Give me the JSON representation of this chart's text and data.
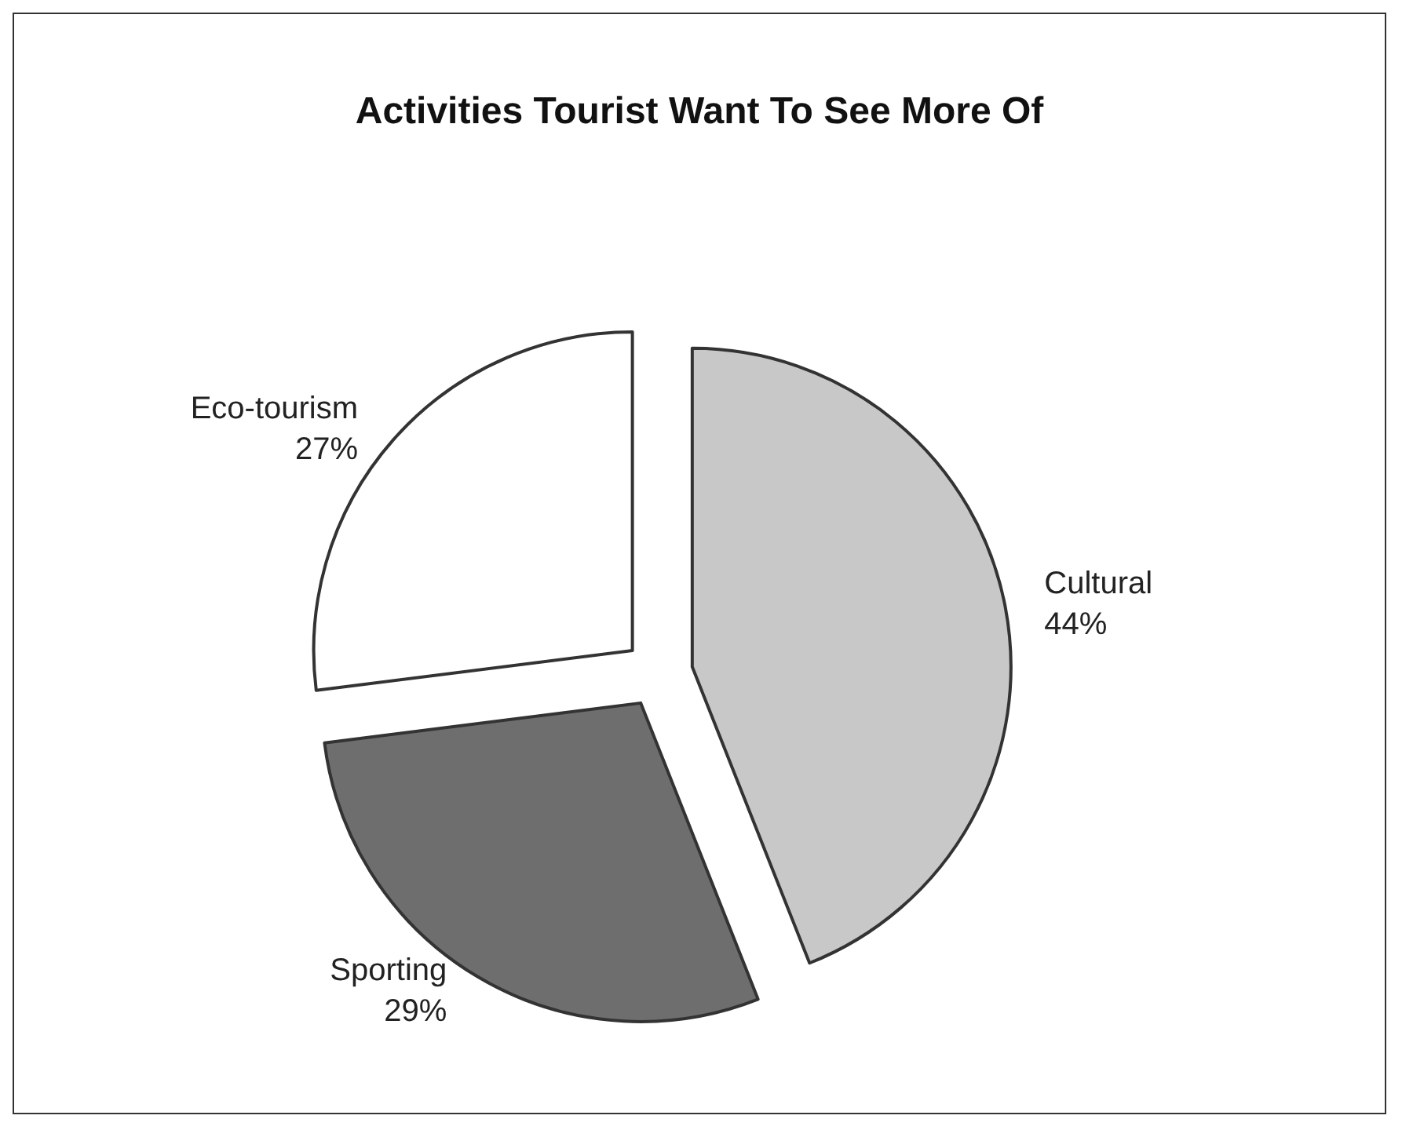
{
  "chart_data": {
    "type": "pie",
    "title": "Activities Tourist Want To See More Of",
    "categories": [
      "Cultural",
      "Sporting",
      "Eco-tourism"
    ],
    "values": [
      44,
      29,
      27
    ],
    "value_labels": [
      "44%",
      "29%",
      "27%"
    ],
    "colors": [
      "#c8c8c8",
      "#6e6e6e",
      "#ffffff"
    ],
    "legend": false
  }
}
